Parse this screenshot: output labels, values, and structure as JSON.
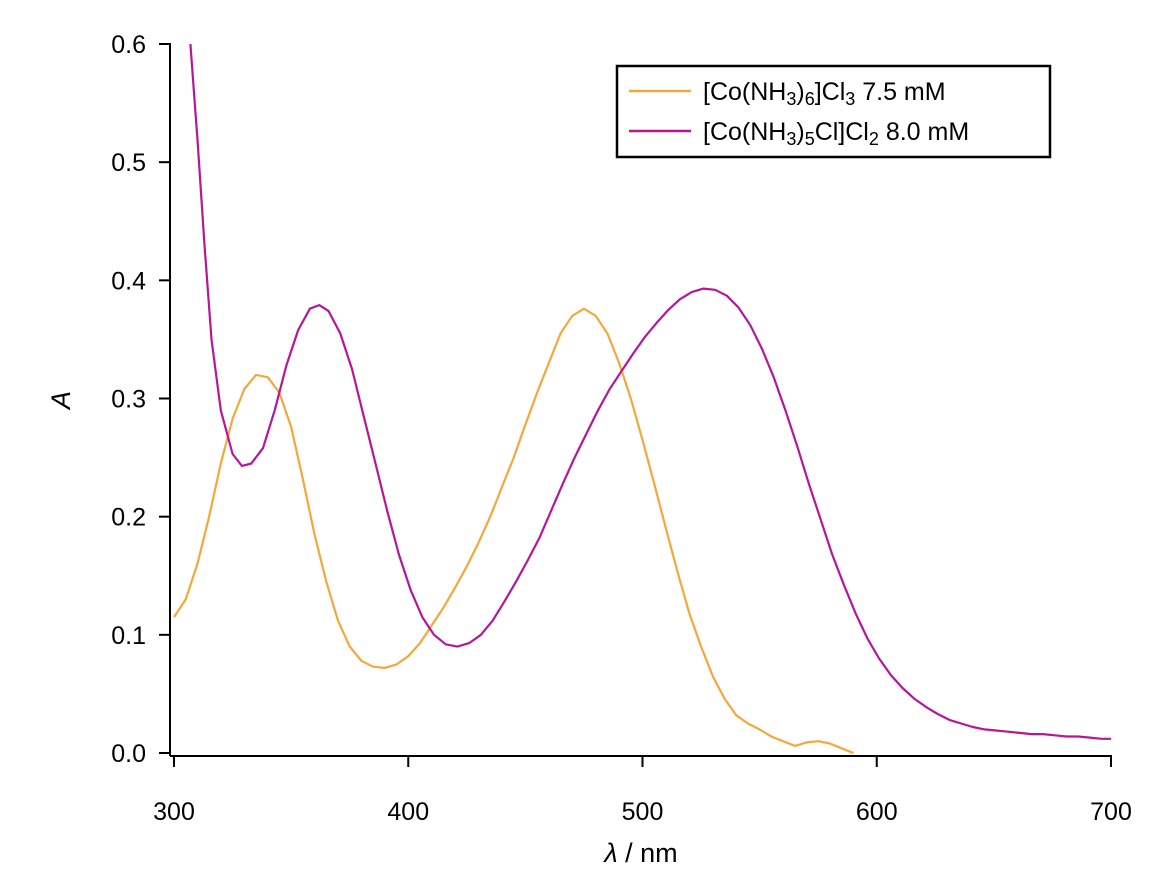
{
  "chart_data": {
    "type": "line",
    "xlabel": {
      "symbol": "λ",
      "unit": " / nm"
    },
    "ylabel": "A",
    "xlim": [
      300,
      700
    ],
    "ylim": [
      0,
      0.6
    ],
    "x_ticks": [
      300,
      400,
      500,
      600,
      700
    ],
    "y_ticks": [
      "0.0",
      "0.1",
      "0.2",
      "0.3",
      "0.4",
      "0.5",
      "0.6"
    ],
    "grid": false,
    "legend": {
      "position": "top-right",
      "entries": [
        {
          "parts": [
            [
              "[Co(NH",
              ""
            ],
            [
              "3",
              "sub"
            ],
            [
              ")",
              ""
            ],
            [
              "6",
              "sub"
            ],
            [
              "]Cl",
              ""
            ],
            [
              "3",
              "sub"
            ],
            [
              "  7.5 mM",
              ""
            ]
          ]
        },
        {
          "parts": [
            [
              "[Co(NH",
              ""
            ],
            [
              "3",
              "sub"
            ],
            [
              ")",
              ""
            ],
            [
              "5",
              "sub"
            ],
            [
              "Cl]Cl",
              ""
            ],
            [
              "2",
              "sub"
            ],
            [
              " 8.0 mM",
              ""
            ]
          ]
        }
      ]
    },
    "series": [
      {
        "color": "#F5A73B",
        "points": [
          [
            300,
            0.115
          ],
          [
            305,
            0.13
          ],
          [
            310,
            0.16
          ],
          [
            315,
            0.2
          ],
          [
            320,
            0.245
          ],
          [
            325,
            0.283
          ],
          [
            330,
            0.308
          ],
          [
            335,
            0.32
          ],
          [
            340,
            0.318
          ],
          [
            345,
            0.305
          ],
          [
            350,
            0.276
          ],
          [
            355,
            0.232
          ],
          [
            360,
            0.185
          ],
          [
            365,
            0.145
          ],
          [
            370,
            0.112
          ],
          [
            375,
            0.09
          ],
          [
            380,
            0.078
          ],
          [
            385,
            0.073
          ],
          [
            390,
            0.072
          ],
          [
            395,
            0.075
          ],
          [
            400,
            0.082
          ],
          [
            405,
            0.093
          ],
          [
            410,
            0.108
          ],
          [
            415,
            0.123
          ],
          [
            420,
            0.14
          ],
          [
            425,
            0.158
          ],
          [
            430,
            0.178
          ],
          [
            435,
            0.2
          ],
          [
            440,
            0.225
          ],
          [
            445,
            0.25
          ],
          [
            450,
            0.278
          ],
          [
            455,
            0.305
          ],
          [
            460,
            0.33
          ],
          [
            465,
            0.355
          ],
          [
            470,
            0.37
          ],
          [
            475,
            0.376
          ],
          [
            480,
            0.37
          ],
          [
            485,
            0.355
          ],
          [
            490,
            0.33
          ],
          [
            495,
            0.3
          ],
          [
            500,
            0.265
          ],
          [
            505,
            0.228
          ],
          [
            510,
            0.19
          ],
          [
            515,
            0.153
          ],
          [
            520,
            0.118
          ],
          [
            525,
            0.09
          ],
          [
            530,
            0.065
          ],
          [
            535,
            0.046
          ],
          [
            540,
            0.032
          ],
          [
            545,
            0.025
          ],
          [
            550,
            0.02
          ],
          [
            555,
            0.014
          ],
          [
            560,
            0.01
          ],
          [
            565,
            0.006
          ],
          [
            570,
            0.009
          ],
          [
            575,
            0.01
          ],
          [
            580,
            0.008
          ],
          [
            585,
            0.004
          ],
          [
            590,
            0.0
          ]
        ]
      },
      {
        "color": "#B5169B",
        "points": [
          [
            307,
            0.6
          ],
          [
            310,
            0.52
          ],
          [
            313,
            0.43
          ],
          [
            316,
            0.35
          ],
          [
            320,
            0.29
          ],
          [
            325,
            0.253
          ],
          [
            329,
            0.243
          ],
          [
            333,
            0.245
          ],
          [
            338,
            0.258
          ],
          [
            343,
            0.29
          ],
          [
            348,
            0.328
          ],
          [
            353,
            0.358
          ],
          [
            358,
            0.376
          ],
          [
            362,
            0.379
          ],
          [
            366,
            0.374
          ],
          [
            371,
            0.355
          ],
          [
            376,
            0.325
          ],
          [
            381,
            0.285
          ],
          [
            386,
            0.245
          ],
          [
            391,
            0.205
          ],
          [
            396,
            0.168
          ],
          [
            401,
            0.138
          ],
          [
            406,
            0.115
          ],
          [
            411,
            0.1
          ],
          [
            416,
            0.092
          ],
          [
            421,
            0.09
          ],
          [
            426,
            0.093
          ],
          [
            431,
            0.1
          ],
          [
            436,
            0.112
          ],
          [
            441,
            0.128
          ],
          [
            446,
            0.145
          ],
          [
            451,
            0.163
          ],
          [
            456,
            0.182
          ],
          [
            461,
            0.205
          ],
          [
            466,
            0.228
          ],
          [
            471,
            0.25
          ],
          [
            476,
            0.27
          ],
          [
            481,
            0.29
          ],
          [
            486,
            0.308
          ],
          [
            491,
            0.323
          ],
          [
            496,
            0.338
          ],
          [
            501,
            0.352
          ],
          [
            506,
            0.364
          ],
          [
            511,
            0.375
          ],
          [
            516,
            0.384
          ],
          [
            521,
            0.39
          ],
          [
            526,
            0.393
          ],
          [
            531,
            0.392
          ],
          [
            536,
            0.387
          ],
          [
            541,
            0.377
          ],
          [
            546,
            0.362
          ],
          [
            551,
            0.342
          ],
          [
            556,
            0.318
          ],
          [
            561,
            0.29
          ],
          [
            566,
            0.26
          ],
          [
            571,
            0.228
          ],
          [
            576,
            0.198
          ],
          [
            581,
            0.168
          ],
          [
            586,
            0.142
          ],
          [
            591,
            0.118
          ],
          [
            596,
            0.097
          ],
          [
            601,
            0.08
          ],
          [
            606,
            0.066
          ],
          [
            611,
            0.055
          ],
          [
            616,
            0.046
          ],
          [
            621,
            0.039
          ],
          [
            626,
            0.033
          ],
          [
            631,
            0.028
          ],
          [
            636,
            0.025
          ],
          [
            641,
            0.022
          ],
          [
            646,
            0.02
          ],
          [
            651,
            0.019
          ],
          [
            656,
            0.018
          ],
          [
            661,
            0.017
          ],
          [
            666,
            0.016
          ],
          [
            671,
            0.016
          ],
          [
            676,
            0.015
          ],
          [
            681,
            0.014
          ],
          [
            686,
            0.014
          ],
          [
            691,
            0.013
          ],
          [
            696,
            0.012
          ],
          [
            700,
            0.012
          ]
        ]
      }
    ]
  }
}
